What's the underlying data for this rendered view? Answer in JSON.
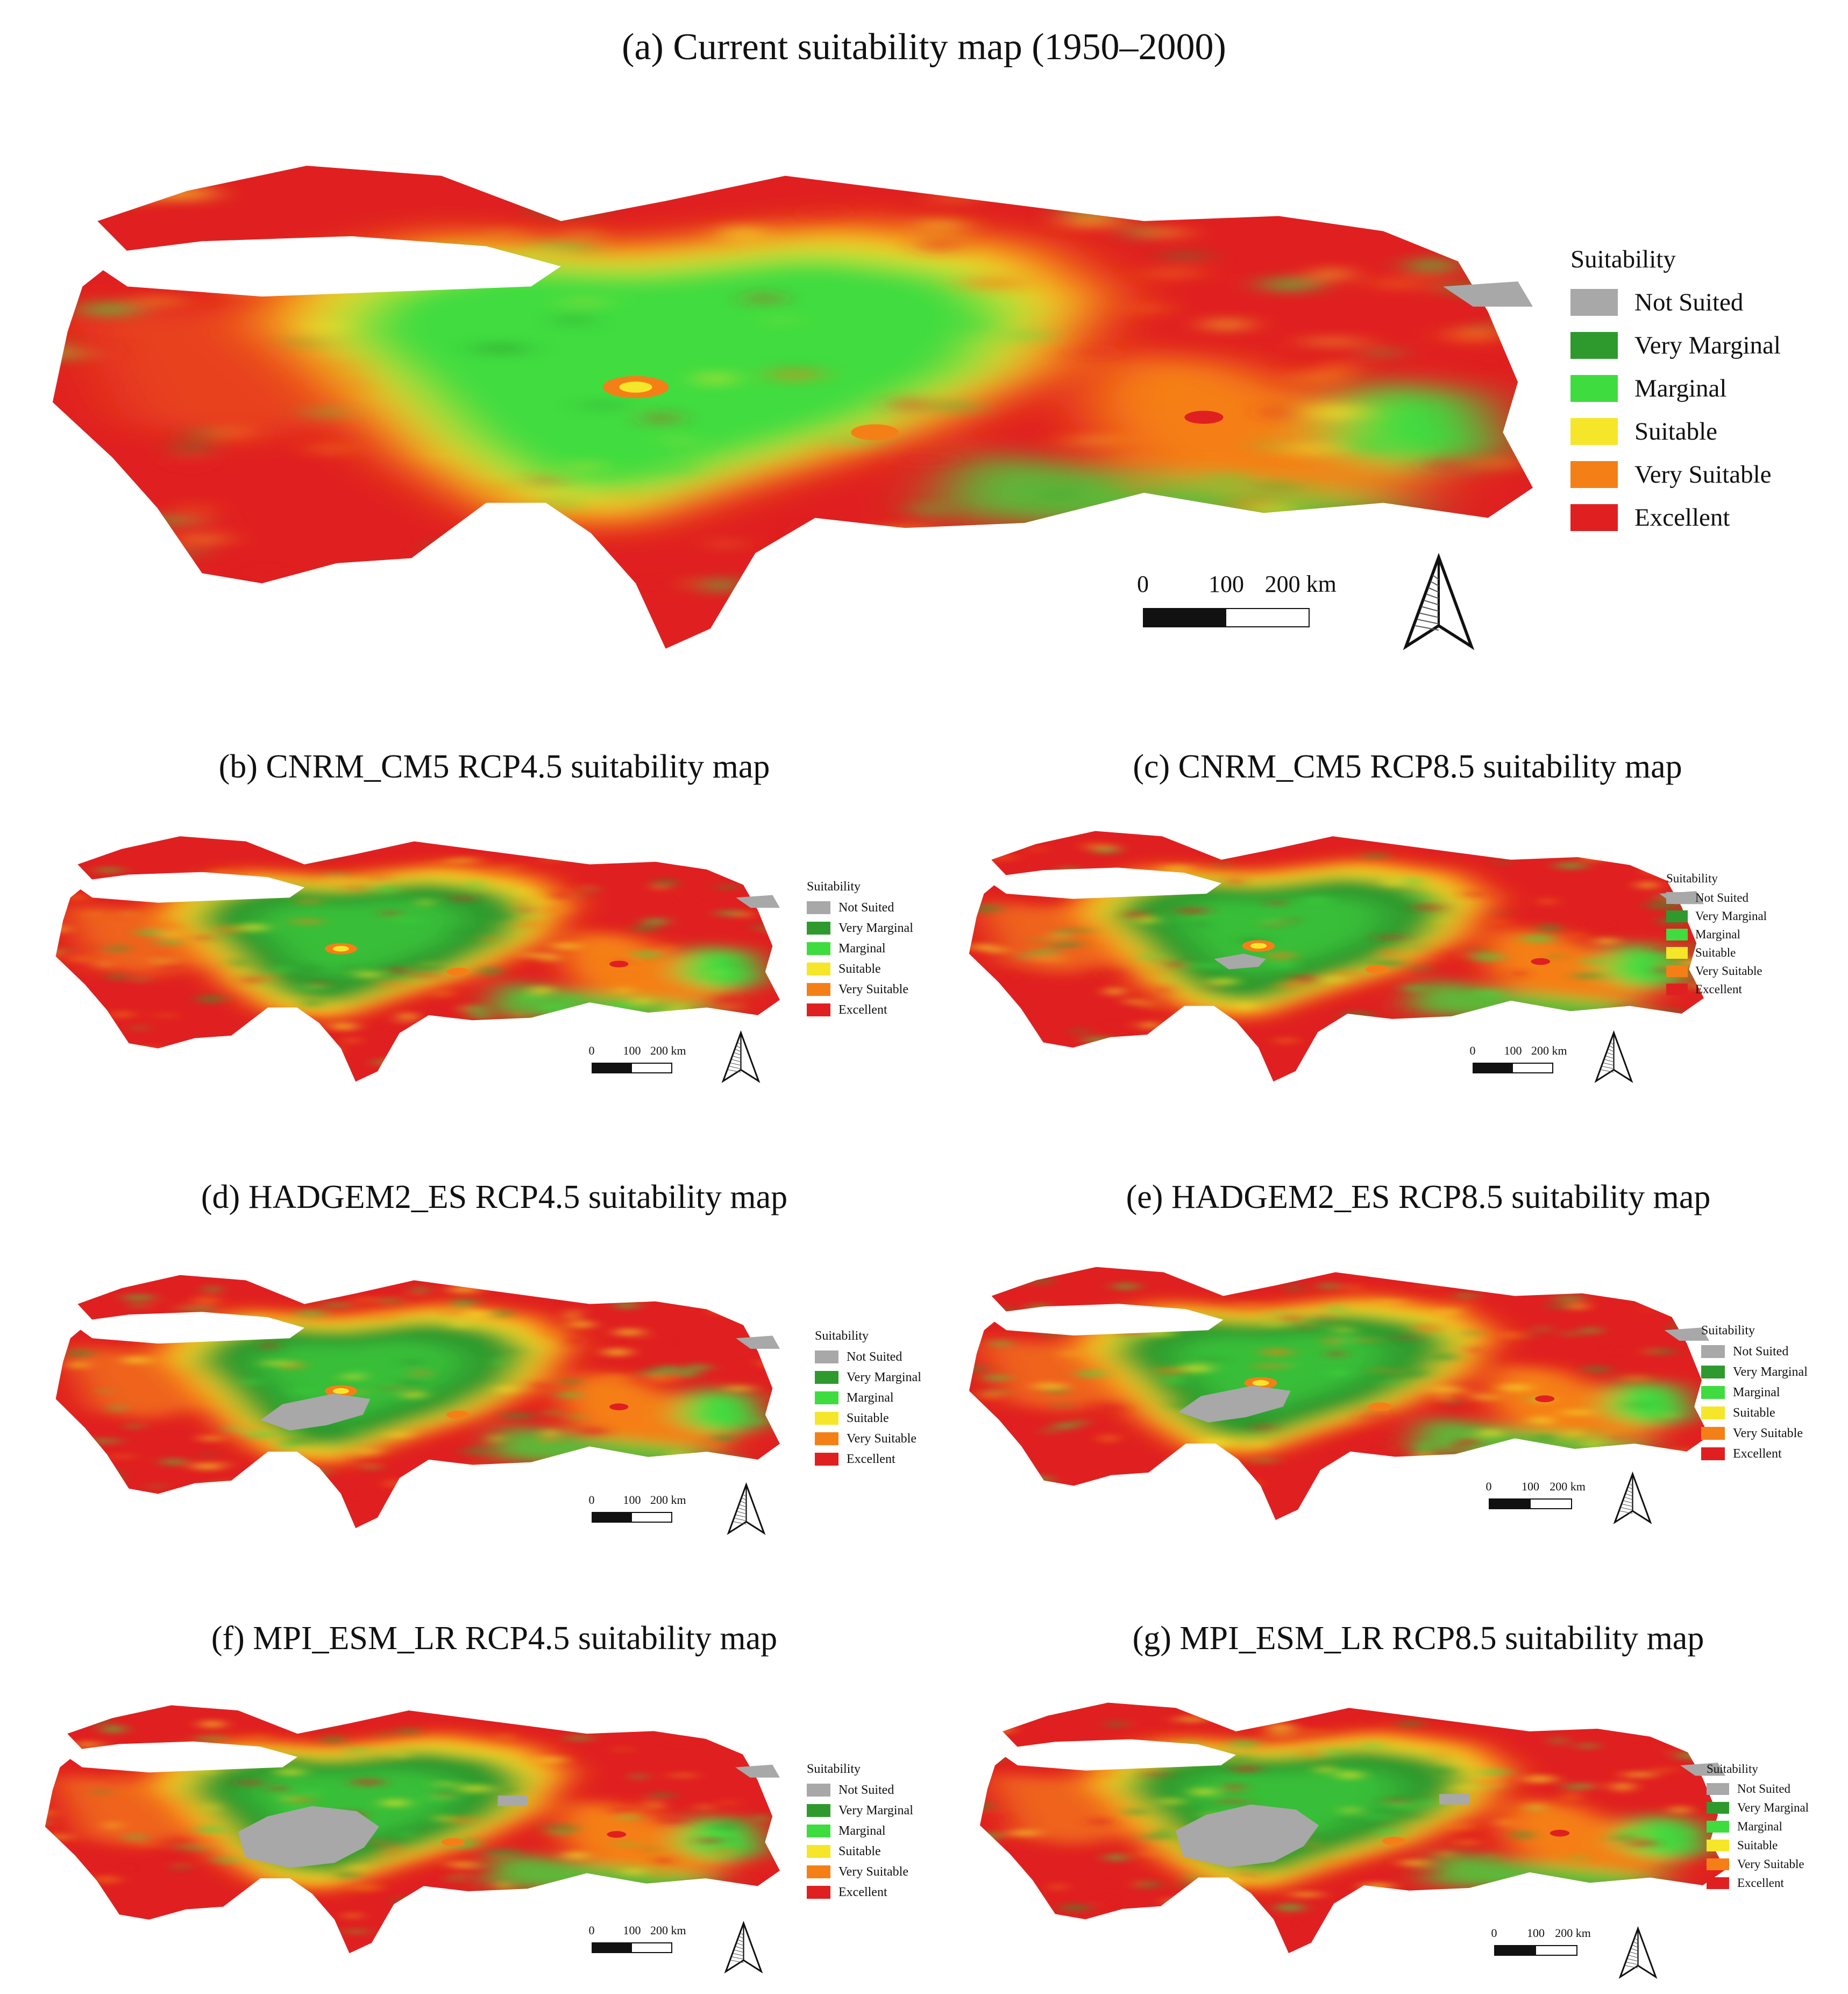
{
  "legend_title": "Suitability",
  "classes": [
    {
      "label": "Not Suited",
      "color": "#a8a8a8"
    },
    {
      "label": "Very Marginal",
      "color": "#2e9a2e"
    },
    {
      "label": "Marginal",
      "color": "#3fdc3f"
    },
    {
      "label": "Suitable",
      "color": "#f5e62a"
    },
    {
      "label": "Very Suitable",
      "color": "#f57f17"
    },
    {
      "label": "Excellent",
      "color": "#e02020"
    }
  ],
  "scale_labels": [
    "0",
    "100",
    "200 km"
  ],
  "panels": [
    {
      "id": "a",
      "title": "(a) Current suitability map (1950–2000)",
      "not_suited_interior": 0
    },
    {
      "id": "b",
      "title": "(b) CNRM_CM5 RCP4.5 suitability map",
      "not_suited_interior": 0
    },
    {
      "id": "c",
      "title": "(c) CNRM_CM5 RCP8.5 suitability map",
      "not_suited_interior": 1
    },
    {
      "id": "d",
      "title": "(d) HADGEM2_ES RCP4.5 suitability map",
      "not_suited_interior": 2
    },
    {
      "id": "e",
      "title": "(e) HADGEM2_ES RCP8.5 suitability map",
      "not_suited_interior": 2
    },
    {
      "id": "f",
      "title": "(f) MPI_ESM_LR RCP4.5 suitability map",
      "not_suited_interior": 3
    },
    {
      "id": "g",
      "title": "(g) MPI_ESM_LR RCP8.5 suitability map",
      "not_suited_interior": 3
    }
  ]
}
